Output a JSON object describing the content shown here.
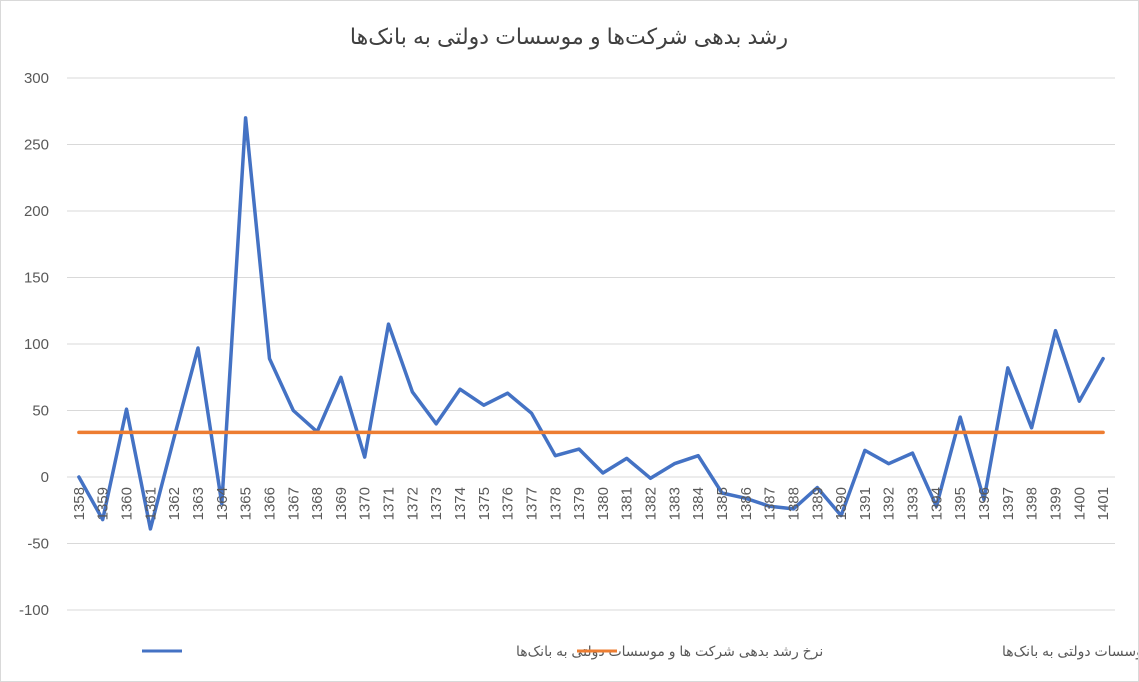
{
  "chart_data": {
    "type": "line",
    "title": "رشد بدهی شرکت‌ها و موسسات دولتی به بانک‌ها",
    "xlabel": "",
    "ylabel": "",
    "ylim": [
      -100,
      300
    ],
    "yticks": [
      -100,
      -50,
      0,
      50,
      100,
      150,
      200,
      250,
      300
    ],
    "grid": true,
    "legend_position": "bottom",
    "categories": [
      "1358",
      "1359",
      "1360",
      "1361",
      "1362",
      "1363",
      "1364",
      "1365",
      "1366",
      "1367",
      "1368",
      "1369",
      "1370",
      "1371",
      "1372",
      "1373",
      "1374",
      "1375",
      "1376",
      "1377",
      "1378",
      "1379",
      "1380",
      "1381",
      "1382",
      "1383",
      "1384",
      "1385",
      "1386",
      "1387",
      "1388",
      "1389",
      "1390",
      "1391",
      "1392",
      "1393",
      "1394",
      "1395",
      "1396",
      "1397",
      "1398",
      "1399",
      "1400",
      "1401"
    ],
    "series": [
      {
        "name": "نرخ رشد بدهی شرکت ها و موسسات دولتی به بانک‌ها",
        "color": "#4472C4",
        "values": [
          0,
          -32,
          51,
          -39,
          30,
          97,
          -20,
          270,
          89,
          50,
          34,
          75,
          15,
          115,
          64,
          40,
          66,
          54,
          63,
          48,
          16,
          21,
          3,
          14,
          -1,
          10,
          16,
          -12,
          -16,
          -22,
          -24,
          -8,
          -29,
          20,
          10,
          18,
          -22,
          45,
          -17,
          82,
          37,
          110,
          57,
          89
        ]
      },
      {
        "name": "میانگین نرخ رشد بدهی شرکت ها و موسسات دولتی به بانک‌ها",
        "color": "#ED7D31",
        "values": [
          33.5,
          33.5,
          33.5,
          33.5,
          33.5,
          33.5,
          33.5,
          33.5,
          33.5,
          33.5,
          33.5,
          33.5,
          33.5,
          33.5,
          33.5,
          33.5,
          33.5,
          33.5,
          33.5,
          33.5,
          33.5,
          33.5,
          33.5,
          33.5,
          33.5,
          33.5,
          33.5,
          33.5,
          33.5,
          33.5,
          33.5,
          33.5,
          33.5,
          33.5,
          33.5,
          33.5,
          33.5,
          33.5,
          33.5,
          33.5,
          33.5,
          33.5,
          33.5,
          33.5
        ]
      }
    ]
  }
}
